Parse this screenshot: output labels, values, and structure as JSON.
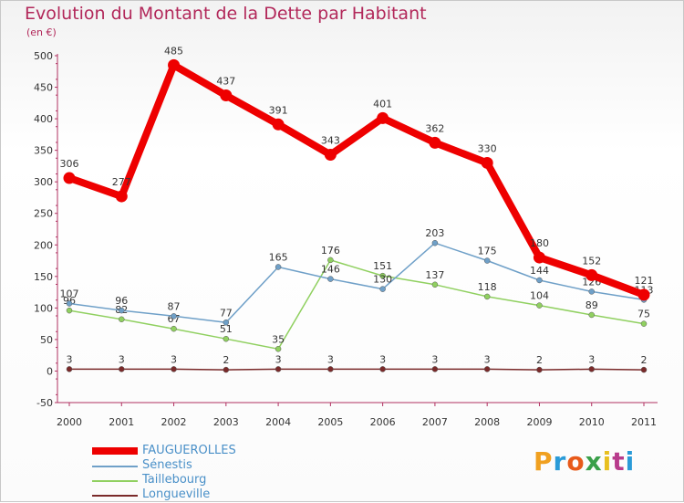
{
  "title": "Evolution du Montant de la Dette par Habitant",
  "subtitle": "(en €)",
  "logo": {
    "letters": [
      "P",
      "r",
      "o",
      "x",
      "i",
      "t",
      "i"
    ],
    "colors": [
      "#f0a020",
      "#2a9bd8",
      "#e85a1a",
      "#3aa04a",
      "#e8c020",
      "#b83c8c",
      "#2a9bd8"
    ]
  },
  "chart_data": {
    "type": "line",
    "x": [
      "2000",
      "2001",
      "2002",
      "2003",
      "2004",
      "2005",
      "2006",
      "2007",
      "2008",
      "2009",
      "2010",
      "2011"
    ],
    "ylim": [
      -50,
      500
    ],
    "yticks": [
      "-50",
      "0",
      "50",
      "100",
      "150",
      "200",
      "250",
      "300",
      "350",
      "400",
      "450",
      "500"
    ],
    "grid": false,
    "legend_position": "bottom-left",
    "series": [
      {
        "name": "FAUGUEROLLES",
        "color": "#ee0000",
        "values": [
          306,
          277,
          485,
          437,
          391,
          343,
          401,
          362,
          330,
          180,
          152,
          121
        ],
        "labels": [
          "306",
          "277",
          "485",
          "437",
          "391",
          "343",
          "401",
          "362",
          "330",
          "180",
          "152",
          "121"
        ]
      },
      {
        "name": "Sénestis",
        "color": "#6fa0c8",
        "values": [
          107,
          96,
          87,
          77,
          165,
          146,
          130,
          203,
          175,
          144,
          126,
          113
        ],
        "labels": [
          "107",
          "96",
          "87",
          "77",
          "165",
          "146",
          "130",
          "203",
          "175",
          "144",
          "126",
          "113"
        ]
      },
      {
        "name": "Taillebourg",
        "color": "#90d060",
        "values": [
          96,
          82,
          67,
          51,
          35,
          176,
          151,
          137,
          118,
          104,
          89,
          75
        ],
        "labels": [
          "96",
          "82",
          "67",
          "51",
          "35",
          "176",
          "151",
          "137",
          "118",
          "104",
          "89",
          "75"
        ]
      },
      {
        "name": "Longueville",
        "color": "#7a2a2a",
        "values": [
          3,
          3,
          3,
          2,
          3,
          3,
          3,
          3,
          3,
          2,
          3,
          2
        ],
        "labels": [
          "3",
          "3",
          "3",
          "2",
          "3",
          "3",
          "3",
          "3",
          "3",
          "2",
          "3",
          "2"
        ]
      }
    ]
  }
}
